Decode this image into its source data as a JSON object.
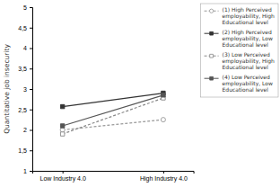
{
  "chart_data": {
    "type": "line",
    "categories": [
      "Low Industry 4.0",
      "High Industry 4.0"
    ],
    "series": [
      {
        "name": "(1) High Perceived\nemployability, High\nEducational level",
        "color": "#999999",
        "values": [
          2.0,
          2.25
        ],
        "marker": "open-circle",
        "line_style": "dashed"
      },
      {
        "name": "(2) High Perceived\nemployability, Low\nEducational level",
        "color": "#333333",
        "values": [
          2.57,
          2.9
        ],
        "marker": "square",
        "line_style": "solid"
      },
      {
        "name": "(3) Low Perceived\nemployability, High\nEducational level",
        "color": "#888888",
        "values": [
          1.9,
          2.78
        ],
        "marker": "open-square",
        "line_style": "dashed"
      },
      {
        "name": "(4) Low Perceived\nemployability, Low\nEducational level",
        "color": "#555555",
        "values": [
          2.1,
          2.85
        ],
        "marker": "square",
        "line_style": "solid"
      }
    ],
    "y_label": "Quantitative job insecurity",
    "ylim": [
      1,
      5
    ],
    "yticks": [
      1,
      {
        "value": 1.5,
        "label": "1,5"
      },
      2,
      {
        "value": 2.5,
        "label": "2,5"
      },
      3,
      {
        "value": 3.5,
        "label": "3,5"
      },
      4,
      {
        "value": 4.5,
        "label": "4,5"
      },
      5
    ],
    "grid": false,
    "legend": "right"
  }
}
